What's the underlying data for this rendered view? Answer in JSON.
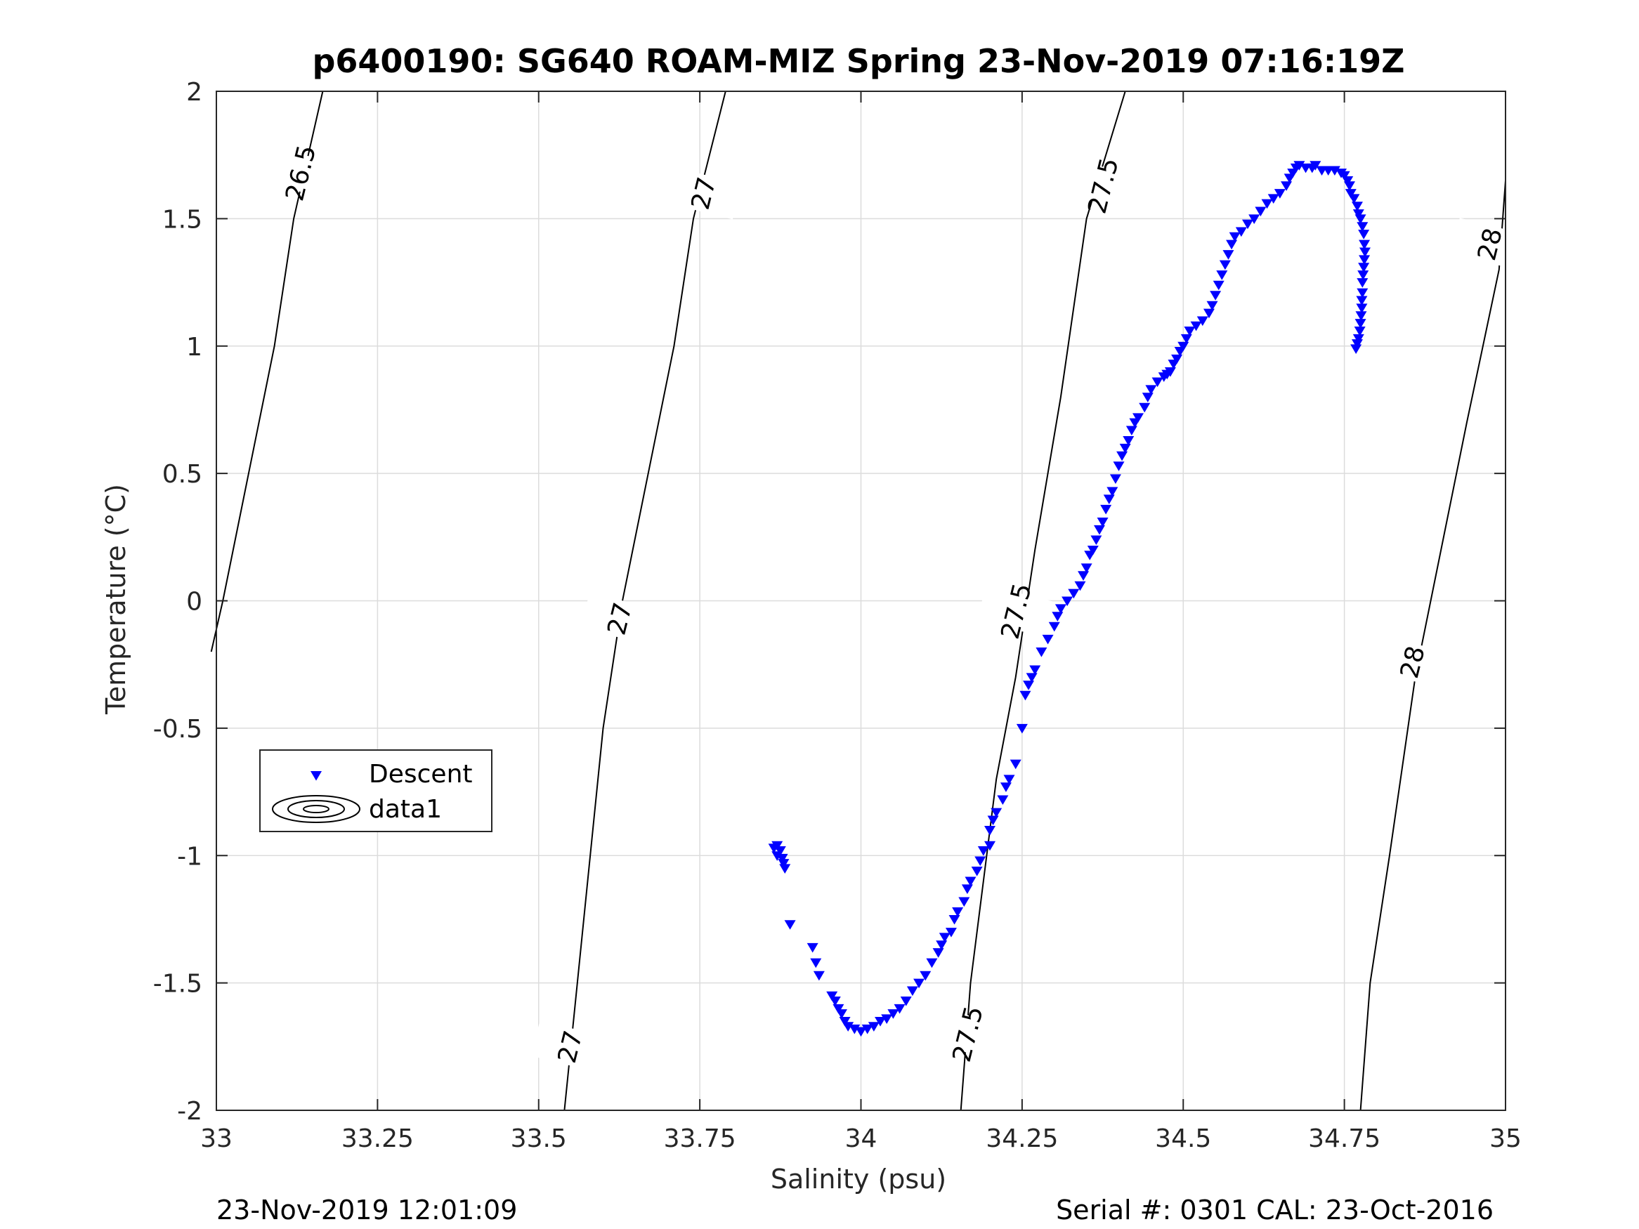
{
  "chart_data": {
    "type": "scatter",
    "title": "p6400190: SG640 ROAM-MIZ Spring 23-Nov-2019 07:16:19Z",
    "xlabel": "Salinity (psu)",
    "ylabel": "Temperature (°C)",
    "xlim": [
      33,
      35
    ],
    "ylim": [
      -2,
      2
    ],
    "grid": true,
    "x_ticks": [
      "33",
      "33.25",
      "33.5",
      "33.75",
      "34",
      "34.25",
      "34.5",
      "34.75",
      "35"
    ],
    "y_ticks": [
      "2",
      "1.5",
      "1",
      "0.5",
      "0",
      "-0.5",
      "-1",
      "-1.5",
      "-2"
    ],
    "legend": {
      "placement": "lower-left",
      "entries": [
        {
          "label": "Descent",
          "color": "#0000ff",
          "marker": "triangle-down"
        },
        {
          "label": "data1",
          "color": "#000000",
          "marker": "contour"
        }
      ]
    },
    "density_contours": [
      {
        "level": "26.5",
        "points": [
          [
            32.992,
            -0.2
          ],
          [
            33.01,
            0
          ],
          [
            33.05,
            0.5
          ],
          [
            33.09,
            1
          ],
          [
            33.12,
            1.5
          ],
          [
            33.165,
            2
          ]
        ],
        "labels": [
          {
            "text": "26.5",
            "s": 33.13,
            "t": 1.68
          }
        ]
      },
      {
        "level": "27",
        "points": [
          [
            33.54,
            -2
          ],
          [
            33.56,
            -1.5
          ],
          [
            33.6,
            -0.5
          ],
          [
            33.63,
            0
          ],
          [
            33.67,
            0.5
          ],
          [
            33.71,
            1
          ],
          [
            33.74,
            1.5
          ],
          [
            33.79,
            2
          ]
        ],
        "labels": [
          {
            "text": "27",
            "s": 33.548,
            "t": -1.75
          },
          {
            "text": "27",
            "s": 33.625,
            "t": -0.07
          },
          {
            "text": "27",
            "s": 33.755,
            "t": 1.6
          }
        ]
      },
      {
        "level": "27.5",
        "points": [
          [
            34.155,
            -2
          ],
          [
            34.17,
            -1.5
          ],
          [
            34.21,
            -0.7
          ],
          [
            34.24,
            -0.3
          ],
          [
            34.27,
            0.2
          ],
          [
            34.31,
            0.8
          ],
          [
            34.35,
            1.5
          ],
          [
            34.41,
            2
          ]
        ],
        "labels": [
          {
            "text": "27.5",
            "s": 34.165,
            "t": -1.7
          },
          {
            "text": "27.5",
            "s": 34.24,
            "t": -0.04
          },
          {
            "text": "27.5",
            "s": 34.375,
            "t": 1.63
          }
        ]
      },
      {
        "level": "28",
        "points": [
          [
            34.775,
            -2
          ],
          [
            34.79,
            -1.5
          ],
          [
            34.82,
            -1
          ],
          [
            34.86,
            -0.3
          ],
          [
            34.9,
            0.2
          ],
          [
            34.94,
            0.7
          ],
          [
            34.99,
            1.3
          ],
          [
            35,
            1.65
          ]
        ],
        "labels": [
          {
            "text": "28",
            "s": 34.855,
            "t": -0.24
          },
          {
            "text": "28",
            "s": 34.975,
            "t": 1.4
          }
        ]
      }
    ],
    "series": [
      {
        "name": "Descent",
        "color": "#0000ff",
        "marker": "triangle-down",
        "points": [
          [
            33.865,
            -0.97
          ],
          [
            33.87,
            -0.96
          ],
          [
            33.875,
            -0.98
          ],
          [
            33.87,
            -1.0
          ],
          [
            33.878,
            -1.01
          ],
          [
            33.88,
            -1.03
          ],
          [
            33.882,
            -1.05
          ],
          [
            33.89,
            -1.27
          ],
          [
            33.925,
            -1.36
          ],
          [
            33.93,
            -1.42
          ],
          [
            33.935,
            -1.47
          ],
          [
            33.955,
            -1.55
          ],
          [
            33.96,
            -1.57
          ],
          [
            33.965,
            -1.6
          ],
          [
            33.97,
            -1.62
          ],
          [
            33.975,
            -1.65
          ],
          [
            33.98,
            -1.67
          ],
          [
            33.99,
            -1.68
          ],
          [
            34.0,
            -1.69
          ],
          [
            34.01,
            -1.68
          ],
          [
            34.02,
            -1.67
          ],
          [
            34.03,
            -1.65
          ],
          [
            34.04,
            -1.64
          ],
          [
            34.05,
            -1.62
          ],
          [
            34.06,
            -1.6
          ],
          [
            34.07,
            -1.57
          ],
          [
            34.08,
            -1.53
          ],
          [
            34.09,
            -1.5
          ],
          [
            34.1,
            -1.47
          ],
          [
            34.11,
            -1.42
          ],
          [
            34.12,
            -1.38
          ],
          [
            34.125,
            -1.35
          ],
          [
            34.13,
            -1.32
          ],
          [
            34.14,
            -1.3
          ],
          [
            34.145,
            -1.25
          ],
          [
            34.15,
            -1.22
          ],
          [
            34.16,
            -1.18
          ],
          [
            34.165,
            -1.13
          ],
          [
            34.17,
            -1.1
          ],
          [
            34.18,
            -1.06
          ],
          [
            34.185,
            -1.02
          ],
          [
            34.19,
            -0.98
          ],
          [
            34.2,
            -0.96
          ],
          [
            34.2,
            -0.9
          ],
          [
            34.205,
            -0.86
          ],
          [
            34.21,
            -0.83
          ],
          [
            34.22,
            -0.78
          ],
          [
            34.225,
            -0.73
          ],
          [
            34.23,
            -0.7
          ],
          [
            34.24,
            -0.64
          ],
          [
            34.25,
            -0.5
          ],
          [
            34.255,
            -0.37
          ],
          [
            34.26,
            -0.33
          ],
          [
            34.265,
            -0.3
          ],
          [
            34.27,
            -0.27
          ],
          [
            34.28,
            -0.2
          ],
          [
            34.29,
            -0.15
          ],
          [
            34.3,
            -0.1
          ],
          [
            34.305,
            -0.06
          ],
          [
            34.31,
            -0.03
          ],
          [
            34.32,
            0.0
          ],
          [
            34.33,
            0.03
          ],
          [
            34.34,
            0.06
          ],
          [
            34.345,
            0.1
          ],
          [
            34.35,
            0.13
          ],
          [
            34.355,
            0.18
          ],
          [
            34.36,
            0.2
          ],
          [
            34.365,
            0.24
          ],
          [
            34.37,
            0.28
          ],
          [
            34.375,
            0.31
          ],
          [
            34.38,
            0.36
          ],
          [
            34.385,
            0.4
          ],
          [
            34.39,
            0.43
          ],
          [
            34.395,
            0.48
          ],
          [
            34.4,
            0.53
          ],
          [
            34.405,
            0.57
          ],
          [
            34.41,
            0.6
          ],
          [
            34.415,
            0.63
          ],
          [
            34.42,
            0.67
          ],
          [
            34.425,
            0.7
          ],
          [
            34.43,
            0.72
          ],
          [
            34.44,
            0.76
          ],
          [
            34.445,
            0.8
          ],
          [
            34.45,
            0.83
          ],
          [
            34.46,
            0.86
          ],
          [
            34.47,
            0.88
          ],
          [
            34.475,
            0.89
          ],
          [
            34.48,
            0.9
          ],
          [
            34.485,
            0.93
          ],
          [
            34.49,
            0.95
          ],
          [
            34.495,
            0.98
          ],
          [
            34.5,
            1.0
          ],
          [
            34.505,
            1.03
          ],
          [
            34.51,
            1.06
          ],
          [
            34.52,
            1.08
          ],
          [
            34.53,
            1.1
          ],
          [
            34.54,
            1.13
          ],
          [
            34.545,
            1.16
          ],
          [
            34.55,
            1.2
          ],
          [
            34.555,
            1.24
          ],
          [
            34.56,
            1.28
          ],
          [
            34.565,
            1.32
          ],
          [
            34.57,
            1.36
          ],
          [
            34.575,
            1.4
          ],
          [
            34.58,
            1.43
          ],
          [
            34.59,
            1.45
          ],
          [
            34.6,
            1.48
          ],
          [
            34.61,
            1.5
          ],
          [
            34.62,
            1.53
          ],
          [
            34.63,
            1.56
          ],
          [
            34.64,
            1.58
          ],
          [
            34.65,
            1.6
          ],
          [
            34.66,
            1.63
          ],
          [
            34.665,
            1.66
          ],
          [
            34.67,
            1.68
          ],
          [
            34.675,
            1.7
          ],
          [
            34.68,
            1.71
          ],
          [
            34.69,
            1.7
          ],
          [
            34.7,
            1.7
          ],
          [
            34.705,
            1.71
          ],
          [
            34.715,
            1.69
          ],
          [
            34.725,
            1.69
          ],
          [
            34.735,
            1.69
          ],
          [
            34.745,
            1.68
          ],
          [
            34.75,
            1.67
          ],
          [
            34.755,
            1.65
          ],
          [
            34.758,
            1.63
          ],
          [
            34.76,
            1.6
          ],
          [
            34.765,
            1.58
          ],
          [
            34.77,
            1.55
          ],
          [
            34.772,
            1.52
          ],
          [
            34.775,
            1.5
          ],
          [
            34.778,
            1.47
          ],
          [
            34.78,
            1.44
          ],
          [
            34.781,
            1.4
          ],
          [
            34.782,
            1.37
          ],
          [
            34.781,
            1.34
          ],
          [
            34.78,
            1.31
          ],
          [
            34.779,
            1.28
          ],
          [
            34.778,
            1.25
          ],
          [
            34.778,
            1.21
          ],
          [
            34.777,
            1.18
          ],
          [
            34.777,
            1.15
          ],
          [
            34.776,
            1.12
          ],
          [
            34.775,
            1.09
          ],
          [
            34.774,
            1.06
          ],
          [
            34.772,
            1.03
          ],
          [
            34.77,
            1.01
          ],
          [
            34.768,
            0.99
          ]
        ]
      }
    ]
  },
  "footer": {
    "left": "23-Nov-2019 12:01:09",
    "right": "Serial #: 0301  CAL: 23-Oct-2016"
  }
}
